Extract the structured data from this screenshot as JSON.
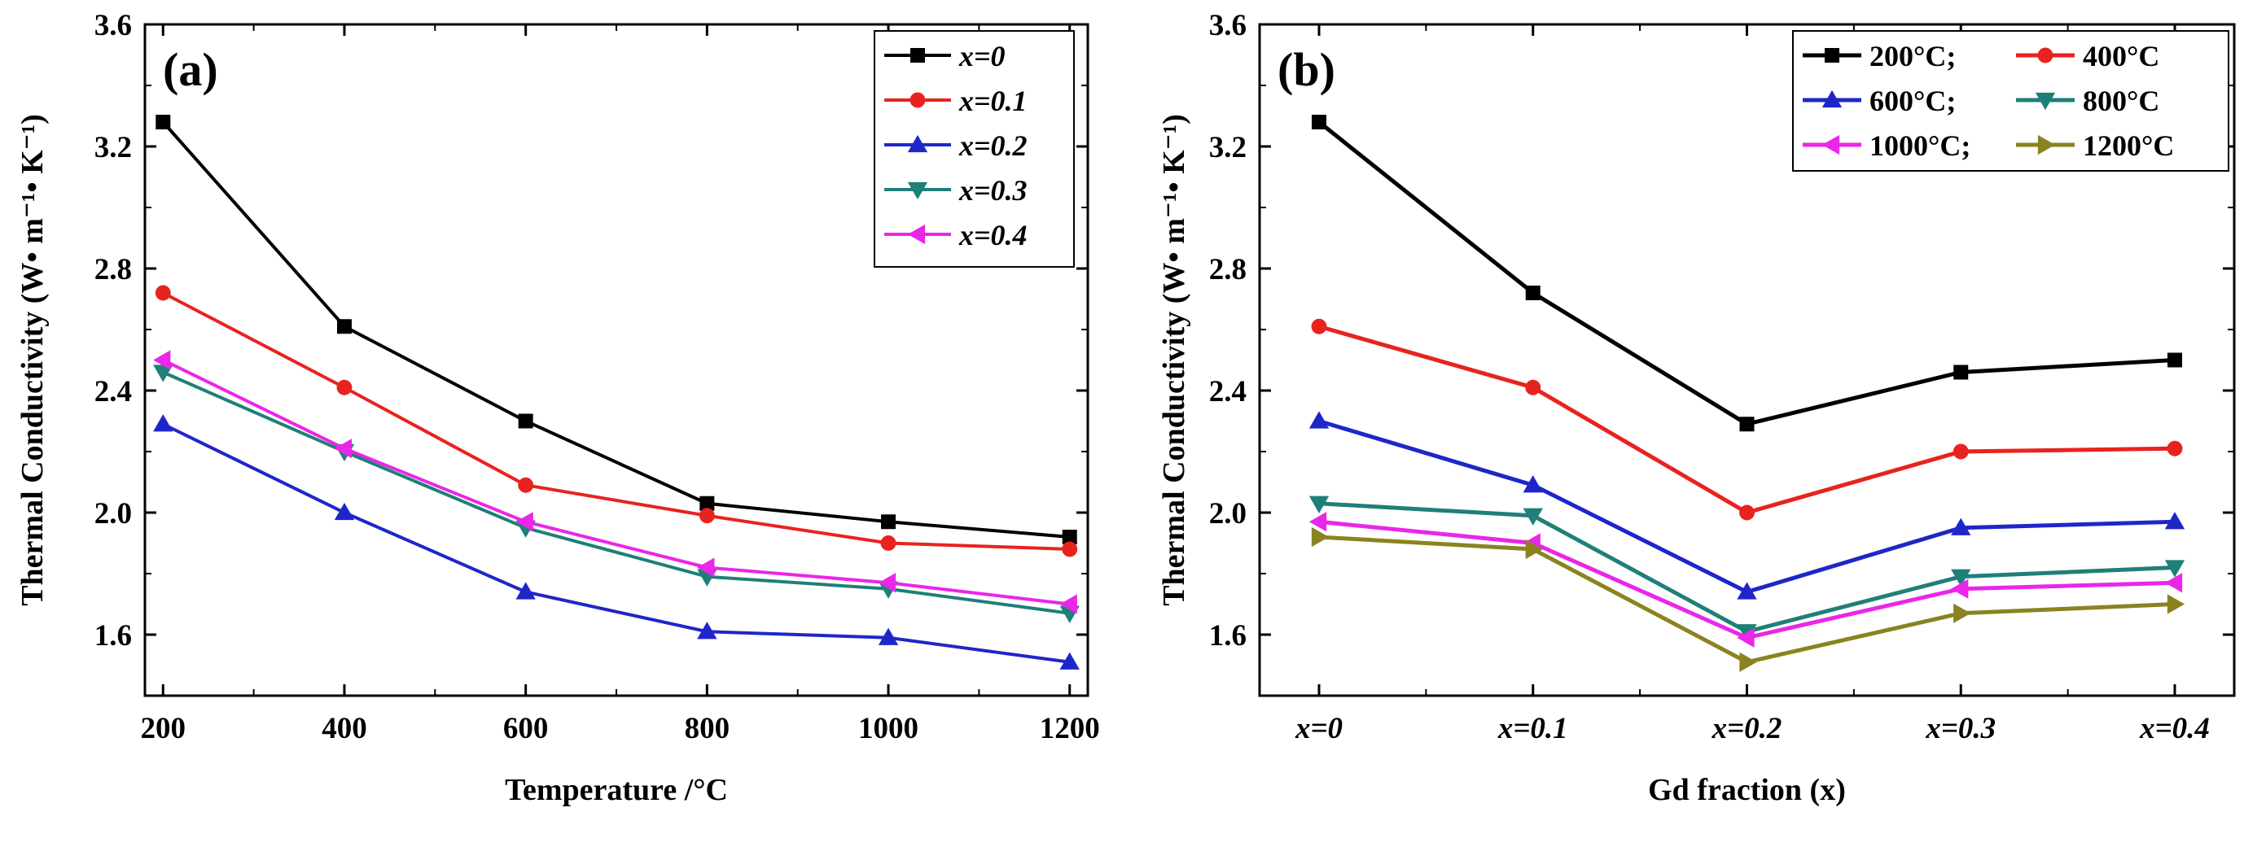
{
  "chart_data": [
    {
      "type": "line",
      "panel_label": "(a)",
      "x": [
        200,
        400,
        600,
        800,
        1000,
        1200
      ],
      "x_ticks": [
        "200",
        "400",
        "600",
        "800",
        "1000",
        "1200"
      ],
      "xlim": [
        180,
        1220
      ],
      "ylim": [
        1.4,
        3.6
      ],
      "y_ticks": [
        "1.6",
        "2.0",
        "2.4",
        "2.8",
        "3.2",
        "3.6"
      ],
      "xlabel": "Temperature /°C",
      "ylabel": "Thermal Conductivity (W• m⁻¹• K⁻¹)",
      "legend_position": "top-right",
      "series": [
        {
          "name": "x=0",
          "color": "#000000",
          "marker": "square",
          "values": [
            3.28,
            2.61,
            2.3,
            2.03,
            1.97,
            1.92
          ]
        },
        {
          "name": "x=0.1",
          "color": "#e8231f",
          "marker": "circle",
          "values": [
            2.72,
            2.41,
            2.09,
            1.99,
            1.9,
            1.88
          ]
        },
        {
          "name": "x=0.2",
          "color": "#1f26c9",
          "marker": "triangle-up",
          "values": [
            2.29,
            2.0,
            1.74,
            1.61,
            1.59,
            1.51
          ]
        },
        {
          "name": "x=0.3",
          "color": "#1f7f79",
          "marker": "triangle-down",
          "values": [
            2.46,
            2.2,
            1.95,
            1.79,
            1.75,
            1.67
          ]
        },
        {
          "name": "x=0.4",
          "color": "#ea26e8",
          "marker": "triangle-left",
          "values": [
            2.5,
            2.21,
            1.97,
            1.82,
            1.77,
            1.7
          ]
        }
      ]
    },
    {
      "type": "line",
      "panel_label": "(b)",
      "categories": [
        "x=0",
        "x=0.1",
        "x=0.2",
        "x=0.3",
        "x=0.4"
      ],
      "ylim": [
        1.4,
        3.6
      ],
      "y_ticks": [
        "1.6",
        "2.0",
        "2.4",
        "2.8",
        "3.2",
        "3.6"
      ],
      "xlabel": "Gd fraction (x)",
      "ylabel": "Thermal Conductivity (W• m⁻¹• K⁻¹)",
      "legend_position": "top-right",
      "series": [
        {
          "name": "200°C;",
          "color": "#000000",
          "marker": "square",
          "values": [
            3.28,
            2.72,
            2.29,
            2.46,
            2.5
          ]
        },
        {
          "name": "400°C",
          "color": "#e8231f",
          "marker": "circle",
          "values": [
            2.61,
            2.41,
            2.0,
            2.2,
            2.21
          ]
        },
        {
          "name": "600°C;",
          "color": "#1f26c9",
          "marker": "triangle-up",
          "values": [
            2.3,
            2.09,
            1.74,
            1.95,
            1.97
          ]
        },
        {
          "name": "800°C",
          "color": "#1f7f79",
          "marker": "triangle-down",
          "values": [
            2.03,
            1.99,
            1.61,
            1.79,
            1.82
          ]
        },
        {
          "name": "1000°C;",
          "color": "#ea26e8",
          "marker": "triangle-left",
          "values": [
            1.97,
            1.9,
            1.59,
            1.75,
            1.77
          ]
        },
        {
          "name": "1200°C",
          "color": "#8a8320",
          "marker": "triangle-right",
          "values": [
            1.92,
            1.88,
            1.51,
            1.67,
            1.7
          ]
        }
      ]
    }
  ]
}
